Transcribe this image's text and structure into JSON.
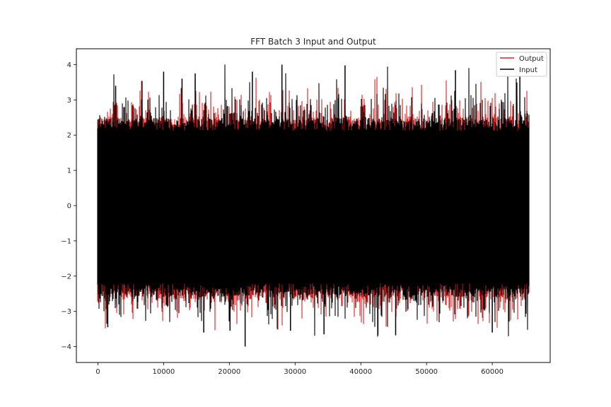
{
  "chart_data": {
    "type": "line",
    "title": "FFT Batch 3 Input and Output",
    "xlabel": "",
    "ylabel": "",
    "xlim": [
      -3277,
      68813
    ],
    "ylim": [
      -4.45,
      4.45
    ],
    "x_ticks": [
      0,
      10000,
      20000,
      30000,
      40000,
      50000,
      60000
    ],
    "y_ticks": [
      -4,
      -3,
      -2,
      -1,
      0,
      1,
      2,
      3,
      4
    ],
    "grid": false,
    "legend_position": "top-right",
    "n_points": 65536,
    "series": [
      {
        "name": "Output",
        "color": "#d62728",
        "stroke": "red"
      },
      {
        "name": "Input",
        "color": "#000000",
        "stroke": "black"
      }
    ],
    "x_range": [
      0,
      65535
    ],
    "y_envelope": {
      "typical_min": -2.4,
      "typical_max": 2.3,
      "max": 4.0,
      "min": -4.0
    }
  }
}
